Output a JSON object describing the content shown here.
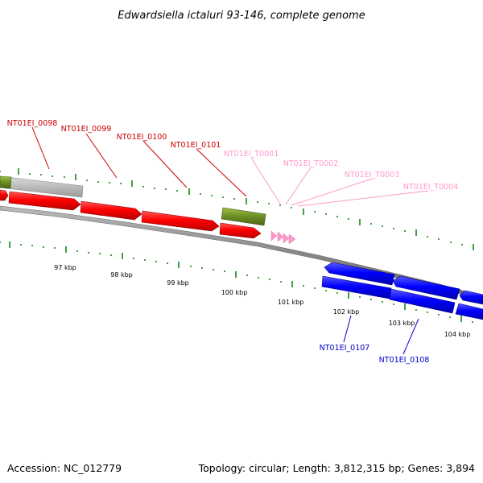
{
  "title": "Edwardsiella ictaluri 93-146, complete genome",
  "footer": {
    "accession": "Accession: NC_012779",
    "topology": "Topology: circular; Length: 3,812,315 bp; Genes: 3,894"
  },
  "colors": {
    "forward_gene": "#ff0000",
    "reverse_gene": "#0000ff",
    "pseudo_gene": "#6b8e23",
    "other_feature": "#bbbbbb",
    "trna": "#ff99cc",
    "backbone": "#888888",
    "tick": "#118811"
  },
  "scale_labels": [
    "97 kbp",
    "98 kbp",
    "99 kbp",
    "100 kbp",
    "101 kbp",
    "102 kbp",
    "103 kbp",
    "104 kbp"
  ],
  "gene_labels": {
    "g0098": "NT01EI_0098",
    "g0099": "NT01EI_0099",
    "g0100": "NT01EI_0100",
    "g0101": "NT01EI_0101",
    "t0001": "NT01EI_T0001",
    "t0002": "NT01EI_T0002",
    "t0003": "NT01EI_T0003",
    "t0004": "NT01EI_T0004",
    "g0107": "NT01EI_0107",
    "g0108": "NT01EI_0108"
  }
}
